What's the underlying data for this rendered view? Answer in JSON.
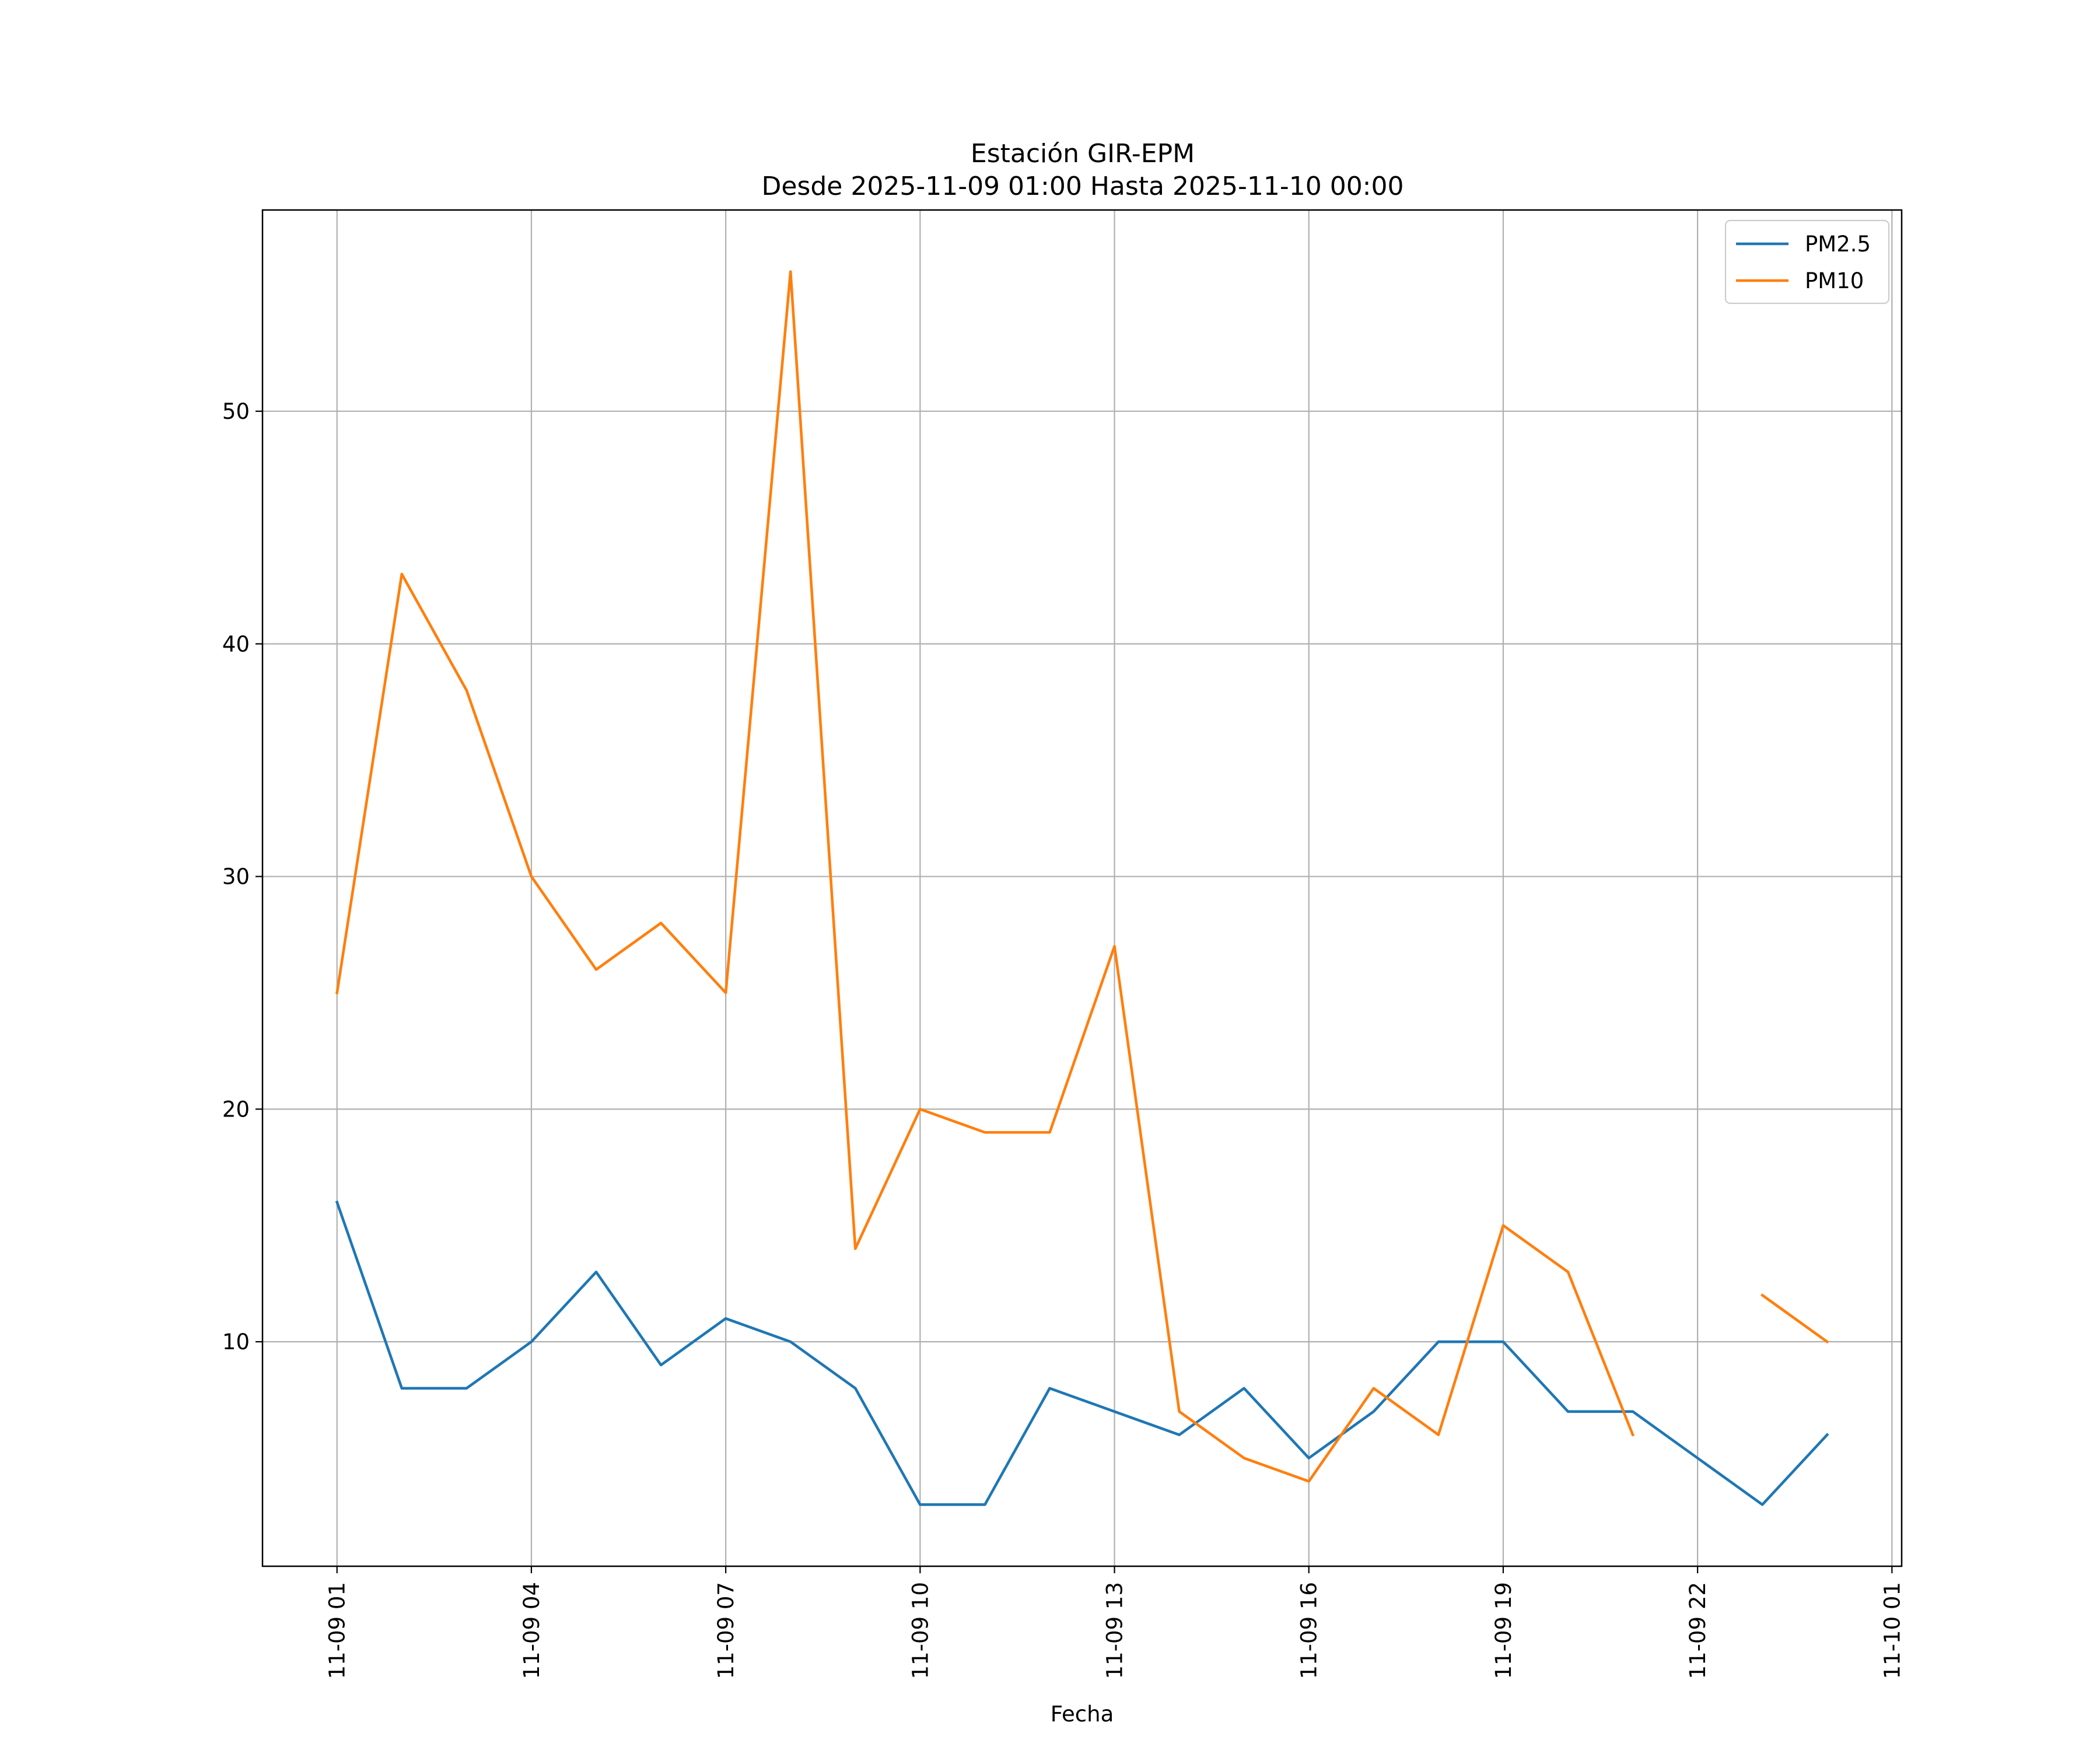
{
  "chart_data": {
    "type": "line",
    "title": [
      "Estación GIR-EPM",
      "Desde 2025-11-09 01:00 Hasta 2025-11-10 00:00"
    ],
    "xlabel": "Fecha",
    "ylabel": "",
    "x": [
      "2025-11-09 01:00",
      "2025-11-09 02:00",
      "2025-11-09 03:00",
      "2025-11-09 04:00",
      "2025-11-09 05:00",
      "2025-11-09 06:00",
      "2025-11-09 07:00",
      "2025-11-09 08:00",
      "2025-11-09 09:00",
      "2025-11-09 10:00",
      "2025-11-09 11:00",
      "2025-11-09 12:00",
      "2025-11-09 13:00",
      "2025-11-09 14:00",
      "2025-11-09 15:00",
      "2025-11-09 16:00",
      "2025-11-09 17:00",
      "2025-11-09 18:00",
      "2025-11-09 19:00",
      "2025-11-09 20:00",
      "2025-11-09 21:00",
      "2025-11-09 22:00",
      "2025-11-09 23:00",
      "2025-11-10 00:00"
    ],
    "x_hours": [
      0,
      1,
      2,
      3,
      4,
      5,
      6,
      7,
      8,
      9,
      10,
      11,
      12,
      13,
      14,
      15,
      16,
      17,
      18,
      19,
      20,
      21,
      22,
      23
    ],
    "xlim_hours": [
      -1.15,
      24.15
    ],
    "xtick_hours": [
      0,
      3,
      6,
      9,
      12,
      15,
      18,
      21,
      24
    ],
    "xtick_labels": [
      "11-09 01",
      "11-09 04",
      "11-09 07",
      "11-09 10",
      "11-09 13",
      "11-09 16",
      "11-09 19",
      "11-09 22",
      "11-10 01"
    ],
    "ylim": [
      0.35,
      58.65
    ],
    "yticks": [
      10,
      20,
      30,
      40,
      50
    ],
    "ytick_labels": [
      "10",
      "20",
      "30",
      "40",
      "50"
    ],
    "grid": true,
    "legend_position": "top-right",
    "series": [
      {
        "name": "PM2.5",
        "color": "#1f77b4",
        "values": [
          16,
          8,
          8,
          10,
          13,
          9,
          11,
          10,
          8,
          3,
          3,
          8,
          7,
          6,
          8,
          5,
          7,
          10,
          10,
          7,
          7,
          5,
          3,
          6
        ]
      },
      {
        "name": "PM10",
        "color": "#ff7f0e",
        "values": [
          25,
          43,
          38,
          30,
          26,
          28,
          25,
          56,
          14,
          20,
          19,
          19,
          27,
          7,
          5,
          4,
          8,
          6,
          15,
          13,
          6,
          null,
          12,
          10
        ]
      }
    ]
  }
}
